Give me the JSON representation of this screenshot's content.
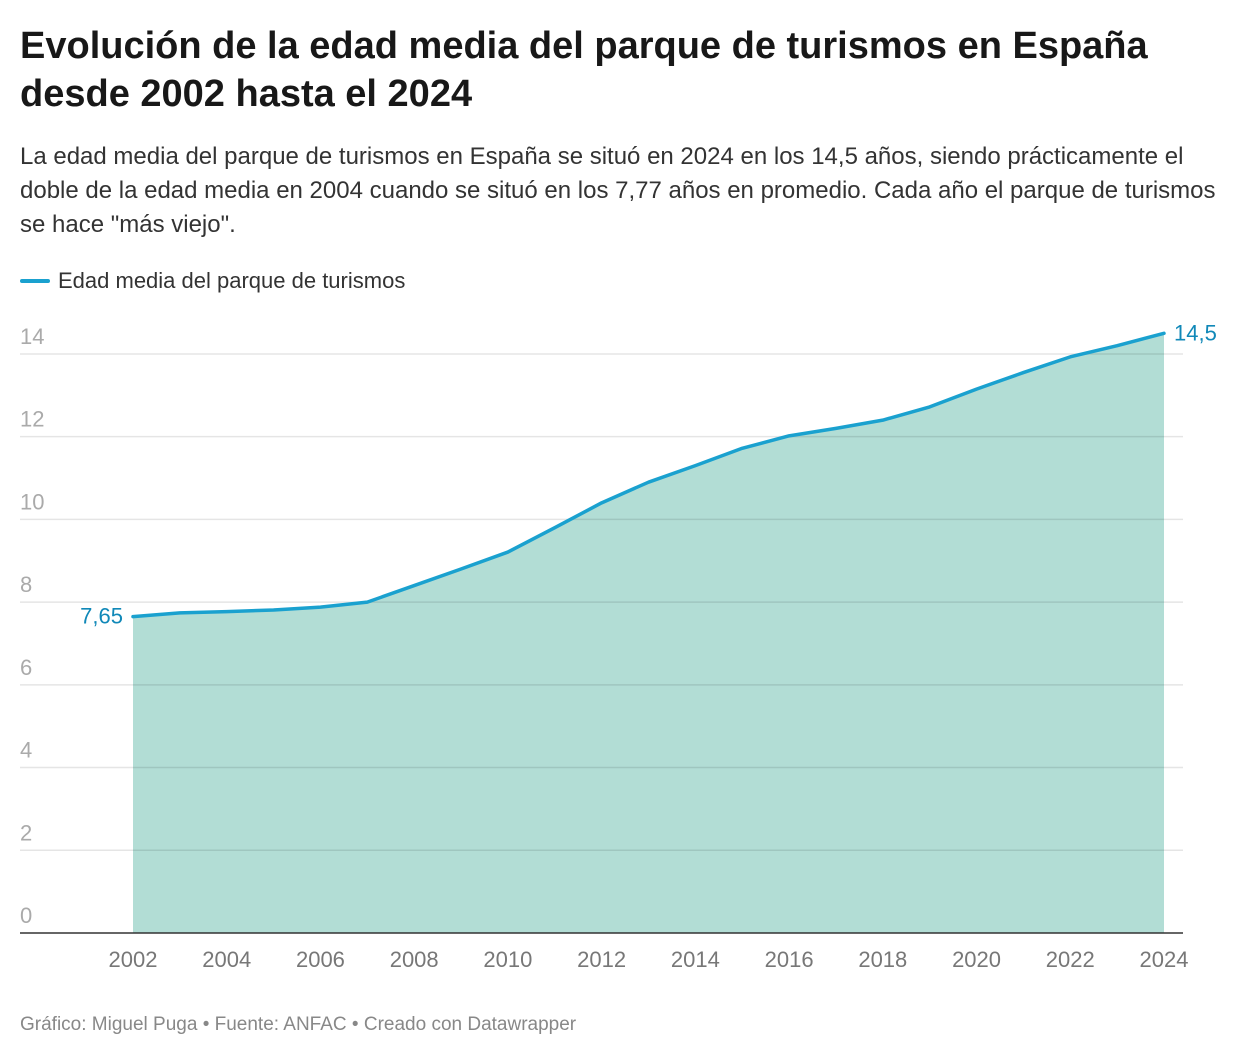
{
  "title": "Evolución de la edad media del parque de turismos en España desde 2002 hasta el 2024",
  "subtitle": "La edad media del parque de turismos en España se situó en 2024 en los 14,5 años, siendo prácticamente el doble de la edad media en 2004 cuando se situó en los 7,77 años en promedio. Cada año el parque de turismos se hace \"más viejo\".",
  "footer": "Gráfico: Miguel Puga • Fuente: ANFAC • Creado con Datawrapper",
  "chart_data": {
    "type": "area",
    "series": [
      {
        "name": "Edad media del parque de turismos",
        "color": "#1aa1cf",
        "fill": "#b2ddd5",
        "x": [
          2002,
          2003,
          2004,
          2005,
          2006,
          2007,
          2008,
          2009,
          2010,
          2011,
          2012,
          2013,
          2014,
          2015,
          2016,
          2017,
          2018,
          2019,
          2020,
          2021,
          2022,
          2023,
          2024
        ],
        "values": [
          7.65,
          7.74,
          7.77,
          7.81,
          7.88,
          8.0,
          8.4,
          8.8,
          9.21,
          9.8,
          10.4,
          10.9,
          11.3,
          11.72,
          12.02,
          12.2,
          12.4,
          12.72,
          13.15,
          13.55,
          13.93,
          14.2,
          14.5
        ]
      }
    ],
    "data_labels": [
      {
        "x": 2002,
        "text": "7,65"
      },
      {
        "x": 2024,
        "text": "14,5"
      }
    ],
    "xlim": [
      2002,
      2024
    ],
    "ylim": [
      0,
      14.5
    ],
    "x_ticks": [
      "2002",
      "2004",
      "2006",
      "2008",
      "2010",
      "2012",
      "2014",
      "2016",
      "2018",
      "2020",
      "2022",
      "2024"
    ],
    "y_ticks": [
      "0",
      "2",
      "4",
      "6",
      "8",
      "10",
      "12",
      "14"
    ],
    "grid": true,
    "legend": "top-left"
  }
}
